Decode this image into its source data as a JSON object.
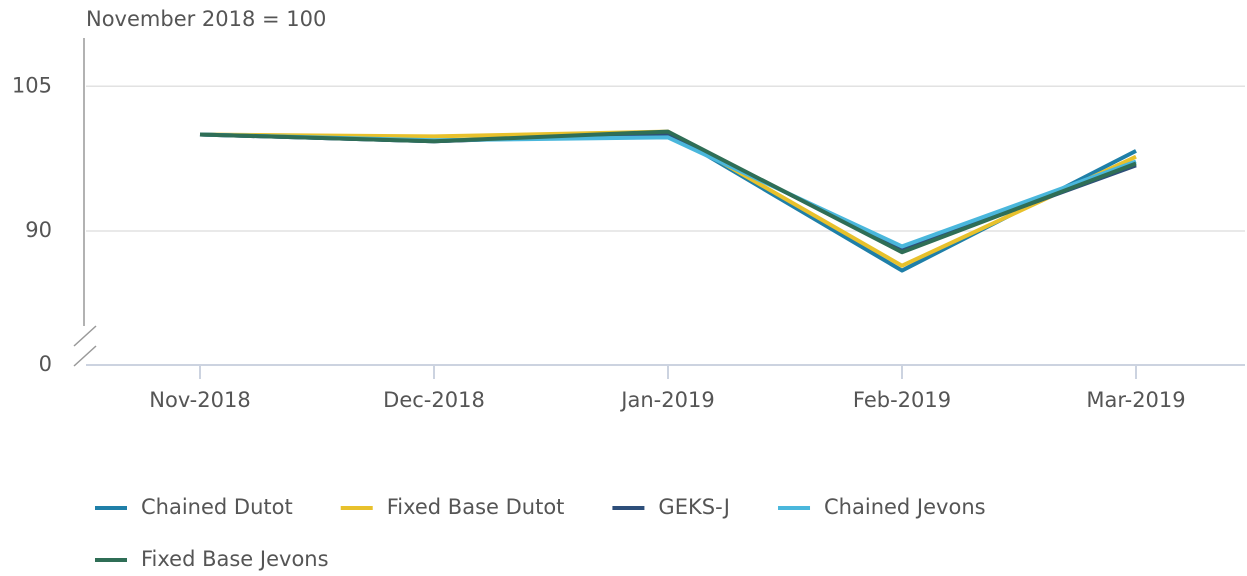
{
  "chart_data": {
    "type": "line",
    "y_axis_label": "November 2018 = 100",
    "categories": [
      "Nov-2018",
      "Dec-2018",
      "Jan-2019",
      "Feb-2019",
      "Mar-2019"
    ],
    "series": [
      {
        "name": "Chained Dutot",
        "color": "#1f7fa8",
        "values": [
          100,
          99.3,
          100.2,
          85.9,
          98.3
        ]
      },
      {
        "name": "Fixed Base Dutot",
        "color": "#e8c12c",
        "values": [
          100,
          99.8,
          100.3,
          86.4,
          97.7
        ]
      },
      {
        "name": "GEKS-J",
        "color": "#2d4e7a",
        "values": [
          100,
          99.3,
          100.1,
          88.0,
          96.8
        ]
      },
      {
        "name": "Chained Jevons",
        "color": "#4ab7dc",
        "values": [
          100,
          99.4,
          99.7,
          88.4,
          97.2
        ]
      },
      {
        "name": "Fixed Base Jevons",
        "color": "#2f6e56",
        "values": [
          100,
          99.3,
          100.3,
          87.8,
          97.0
        ]
      }
    ],
    "ylim": [
      0,
      110
    ],
    "yticks": [
      0,
      90,
      105
    ],
    "axis_break": true,
    "grid": true,
    "legend": "bottom"
  }
}
